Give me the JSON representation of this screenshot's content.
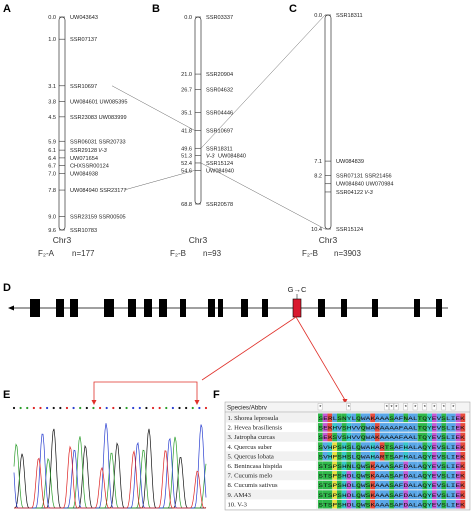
{
  "panel_labels": {
    "a": "A",
    "b": "B",
    "c": "C",
    "d": "D",
    "e": "E",
    "f": "F"
  },
  "maps": {
    "a": {
      "title": "Chr3",
      "population": "F₂-A",
      "n": "n=177",
      "markers": [
        {
          "pos": "0.0",
          "labels": "UW043643",
          "cM": 0.0
        },
        {
          "pos": "1.0",
          "labels": "SSR07137",
          "cM": 1.0
        },
        {
          "pos": "3.1",
          "labels": "SSR10697",
          "cM": 3.1
        },
        {
          "pos": "3.8",
          "labels": "UW084601 UW085395",
          "cM": 3.8
        },
        {
          "pos": "4.5",
          "labels": "SSR23083 UW083999",
          "cM": 4.5
        },
        {
          "pos": "5.9",
          "labels": "SSR06031 SSR20733",
          "cM": 5.6
        },
        {
          "pos": "6.1",
          "labels": "SSR29128",
          "tag": "V-3",
          "cM": 6.0
        },
        {
          "pos": "6.4",
          "labels": "UW071654",
          "cM": 6.35
        },
        {
          "pos": "6.7",
          "labels": "CHXSSR00124",
          "cM": 6.7
        },
        {
          "pos": "7.0",
          "labels": "UW084938",
          "cM": 7.05
        },
        {
          "pos": "7.8",
          "labels": "UW084940 SSR23177",
          "cM": 7.8
        },
        {
          "pos": "9.0",
          "labels": "SSR23159 SSR00505",
          "cM": 9.0
        },
        {
          "pos": "9.6",
          "labels": "SSR10783",
          "cM": 9.6
        }
      ]
    },
    "b": {
      "title": "Chr3",
      "population": "F₂-B",
      "n": "n=93",
      "markers": [
        {
          "pos": "0.0",
          "labels": "SSR03337",
          "cM": 0.0
        },
        {
          "pos": "21.0",
          "labels": "SSR20904",
          "cM": 21.0
        },
        {
          "pos": "26.7",
          "labels": "SSR04632",
          "cM": 26.7
        },
        {
          "pos": "35.1",
          "labels": "SSR04446",
          "cM": 35.1
        },
        {
          "pos": "41.8",
          "labels": "SSR10697",
          "cM": 41.8
        },
        {
          "pos": "49.6",
          "labels": "SSR18311",
          "cM": 48.3
        },
        {
          "pos": "51.3",
          "labels": "",
          "tag": "V-3",
          "extra": "UW084840",
          "cM": 51.0
        },
        {
          "pos": "52.4",
          "labels": "SSR15124",
          "cM": 53.7
        },
        {
          "pos": "54.6",
          "labels": "UW084940",
          "cM": 56.4
        },
        {
          "pos": "68.8",
          "labels": "SSR20578",
          "cM": 68.8
        }
      ]
    },
    "c": {
      "title": "Chr3",
      "population": "F₂-B",
      "n": "n=3903",
      "markers": [
        {
          "pos": "0.0",
          "labels": "SSR18311",
          "cM": 0.0
        },
        {
          "pos": "7.1",
          "labels": "UW084839",
          "cM": 7.1
        },
        {
          "pos": "8.2",
          "labels": "SSR07131 SSR21456",
          "cM": 7.8
        },
        {
          "pos": "",
          "labels": "UW084840 UW070984",
          "cM": 8.2
        },
        {
          "pos": "",
          "labels": "SSR04122",
          "tag": "V-3",
          "cM": 8.6
        },
        {
          "pos": "10.4",
          "labels": "SSR15124",
          "cM": 10.4
        }
      ]
    }
  },
  "gene": {
    "mutation_label": "G→C"
  },
  "alignment": {
    "header": "Species/Abbrv",
    "rows": [
      {
        "name": "1. Shorea leprosula",
        "seq": "SERLSNYLQWAKAAASAFNALTQYEVSLIEK"
      },
      {
        "name": "2. Hevea brasiliensis",
        "seq": "SEKHVSHVVQWAKAAAAFAALTQYEVSLIEK"
      },
      {
        "name": "3. Jatropha curcas",
        "seq": "SEKSVSHVVQWAKAAAAFAALTQYEVSLIEK"
      },
      {
        "name": "4. Quercus suber",
        "seq": "SVHPSHSLQWAHARTSAFHALAQYEVSLIEK"
      },
      {
        "name": "5. Quercus lobata",
        "seq": "SVHPSHSLQWAHARTSAFHALAQYEVSLIEK"
      },
      {
        "name": "6. Benincasa hispida",
        "seq": "STSPSHNLQWSKAAASAFDALAQYEVSLIEK"
      },
      {
        "name": "7. Cucumis melo",
        "seq": "STSPSHDLQWSKAAASAFDALAQYEVSLIEK"
      },
      {
        "name": "8. Cucumis sativus",
        "seq": "STSPSHDLQWSKAAASAFDALAQYEVSLIEK"
      },
      {
        "name": "9. AM43",
        "seq": "STSPSHDLQWSKAAASAFDALAQYEVSLIEK"
      },
      {
        "name": "10. V-3",
        "seq": "STSPSHDLQWSKAAASAFDALAQYEVSLIEK"
      }
    ]
  },
  "colors": {
    "highlight": "#e0302a",
    "connector": "#555555"
  }
}
